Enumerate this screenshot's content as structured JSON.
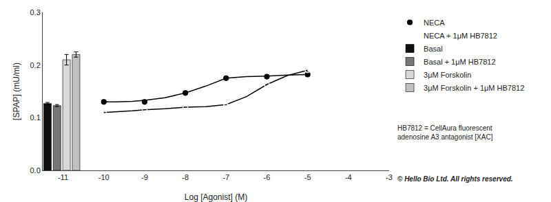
{
  "chart_data": {
    "type": "mixed",
    "xlabel": "Log [Agonist] (M)",
    "ylabel": "[SPAP] (mU/ml)",
    "xlim": [
      -11.5,
      -3.0
    ],
    "ylim": [
      0.0,
      0.3
    ],
    "xticks": [
      -11,
      -10,
      -9,
      -8,
      -7,
      -6,
      -5,
      -4,
      -3
    ],
    "yticks": [
      {
        "value": 0.0,
        "label": "0.0"
      },
      0.1,
      0.2,
      0.3
    ],
    "grid": false,
    "legend": "right",
    "series": [
      {
        "name": "NECA",
        "type": "scatter",
        "marker": "circle",
        "color": "#000000",
        "x": [
          -10,
          -9,
          -8,
          -7,
          -6,
          -5
        ],
        "values": [
          0.13,
          0.13,
          0.147,
          0.175,
          0.178,
          0.182
        ],
        "fit_x": [
          -10,
          -9.7,
          -9.3,
          -9,
          -8.5,
          -8,
          -7.5,
          -7,
          -6.5,
          -6,
          -5.5,
          -5
        ],
        "fit_values": [
          0.13,
          0.13,
          0.131,
          0.133,
          0.138,
          0.147,
          0.16,
          0.175,
          0.178,
          0.179,
          0.181,
          0.182
        ]
      },
      {
        "name": "NECA + 1μM HB7812",
        "type": "scatter",
        "marker": "circle-open",
        "color": "#000000",
        "x": [
          -10,
          -9,
          -8,
          -7,
          -6,
          -5
        ],
        "values": [
          0.11,
          0.115,
          0.12,
          0.122,
          0.163,
          0.19
        ],
        "fit_x": [
          -10,
          -9.7,
          -9.3,
          -9,
          -8.5,
          -8,
          -7.5,
          -7,
          -6.5,
          -6,
          -5.5,
          -5
        ],
        "fit_values": [
          0.11,
          0.111,
          0.113,
          0.115,
          0.117,
          0.12,
          0.121,
          0.125,
          0.14,
          0.163,
          0.18,
          0.19
        ]
      }
    ],
    "bars": {
      "type": "bar",
      "categories": [
        "Basal",
        "Basal + 1μM HB7812",
        "3μM Forskolin",
        "3μM Forskolin + 1μM HB7812"
      ],
      "values": [
        0.127,
        0.123,
        0.21,
        0.22
      ],
      "errors": [
        0.002,
        0.002,
        0.01,
        0.005
      ],
      "colors": [
        "#111111",
        "#777777",
        "#d8d8d8",
        "#c0c0c0"
      ]
    },
    "annotations": [
      "HB7812 = CellAura fluorescent\nadenosine A3 antagonist [XAC]",
      "© Hello Bio Ltd. All rights reserved."
    ]
  }
}
